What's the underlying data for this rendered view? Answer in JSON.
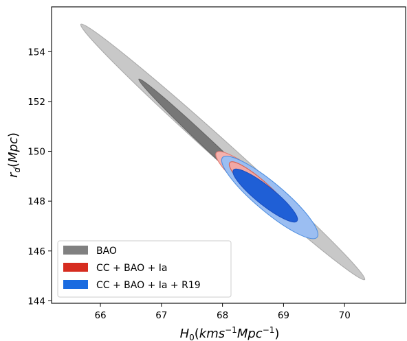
{
  "chart_data": {
    "type": "contour",
    "xlabel": "H0(kms-1Mpc-1)",
    "ylabel": "rd(Mpc)",
    "xlim": [
      65.2,
      71.0
    ],
    "ylim": [
      143.9,
      155.8
    ],
    "xticks": [
      66,
      67,
      68,
      69,
      70
    ],
    "yticks": [
      144,
      146,
      148,
      150,
      152,
      154
    ],
    "grid": false,
    "legend_position": "bottom-left",
    "series": [
      {
        "name": "BAO",
        "color": "#808080",
        "center": {
          "H0": 68.0,
          "rd": 150.0
        },
        "contours": [
          {
            "level": "1-sigma",
            "endpoints": [
              [
                66.63,
                152.9
              ],
              [
                68.95,
                147.55
              ]
            ],
            "half_width_H0": 0.12,
            "color": "#777777",
            "edge": "#666666"
          },
          {
            "level": "2-sigma",
            "endpoints": [
              [
                65.68,
                155.1
              ],
              [
                70.33,
                144.85
              ]
            ],
            "half_width_H0": 0.24,
            "color": "#c8c8c8",
            "edge": "#aaaaaa"
          }
        ]
      },
      {
        "name": "CC + BAO + Ia",
        "color": "#d62c1f",
        "center": {
          "H0": 68.62,
          "rd": 148.42
        },
        "contours": [
          {
            "level": "1-sigma",
            "endpoints": [
              [
                68.12,
                149.55
              ],
              [
                69.15,
                147.28
              ]
            ],
            "half_width_H0": 0.22,
            "color": "#f2a8a4",
            "edge": "#d9614f"
          },
          {
            "level": "2-sigma",
            "endpoints": [
              [
                67.9,
                149.95
              ],
              [
                69.4,
                146.95
              ]
            ],
            "half_width_H0": 0.3,
            "color": "#f5b2ae",
            "edge": "#e07b72"
          }
        ]
      },
      {
        "name": "CC + BAO + Ia + R19",
        "color": "#1a6be0",
        "center": {
          "H0": 68.75,
          "rd": 148.25
        },
        "contours": [
          {
            "level": "1-sigma",
            "endpoints": [
              [
                68.18,
                149.25
              ],
              [
                69.22,
                147.2
              ]
            ],
            "half_width_H0": 0.24,
            "color": "#1f5fd6",
            "edge": "#1a4fc0"
          },
          {
            "level": "2-sigma",
            "endpoints": [
              [
                68.0,
                149.75
              ],
              [
                69.55,
                146.55
              ]
            ],
            "half_width_H0": 0.36,
            "color": "#9bbef2",
            "edge": "#4f8fe0"
          }
        ]
      }
    ]
  }
}
